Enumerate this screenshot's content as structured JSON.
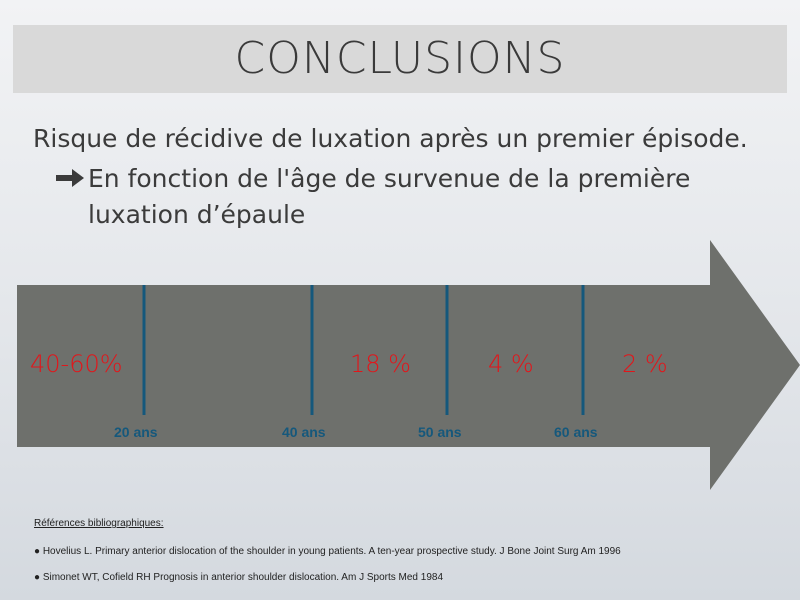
{
  "slide": {
    "title": "CONCLUSIONS",
    "line1": "Risque de récidive de luxation après un premier épisode.",
    "bullet_icon": "heavy-right-arrow",
    "line2": "En fonction de l'âge de survenue de la première",
    "line3": "luxation d’épaule"
  },
  "timeline": {
    "segments": [
      "40-60%",
      "18 %",
      "4 %",
      "2 %"
    ],
    "ages": [
      "20 ans",
      "40 ans",
      "50 ans",
      "60 ans"
    ],
    "colors": {
      "arrow": "#6e706c",
      "divider": "#15587c",
      "percent": "#e3151a",
      "age": "#15587c"
    }
  },
  "references": {
    "title": "Références bibliographiques:",
    "items": [
      "● Hovelius L. Primary anterior dislocation of the shoulder in young patients. A ten-year prospective study. J Bone Joint Surg Am 1996",
      "● Simonet WT, Cofield RH Prognosis in anterior shoulder dislocation. Am J Sports Med 1984"
    ]
  }
}
